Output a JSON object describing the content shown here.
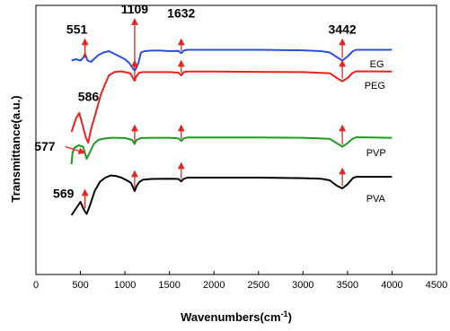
{
  "chart_data": {
    "type": "line",
    "xlabel": "Wavenumbers(cm",
    "xlabel_sup": "-1",
    "xlabel_end": ")",
    "ylabel": "Transmittance(a.u.)",
    "xlim": [
      0,
      4500
    ],
    "xticks": [
      0,
      500,
      1000,
      1500,
      2000,
      2500,
      3000,
      3500,
      4000,
      4500
    ],
    "xtick_labels": [
      "0",
      "500",
      "1000",
      "1500",
      "2000",
      "2500",
      "3000",
      "3500",
      "4000",
      "4500"
    ],
    "ylim": [
      0,
      100
    ],
    "yticks_shown": false,
    "grid": false,
    "colors": {
      "EG": "#2b4fe0",
      "PEG": "#e8221f",
      "PVP": "#1f9a1f",
      "PVA": "#000000",
      "arrow": "#e8221f"
    },
    "series": [
      {
        "name": "EG",
        "points": [
          [
            400,
            79.5
          ],
          [
            450,
            80
          ],
          [
            500,
            79.5
          ],
          [
            530,
            80.5
          ],
          [
            551,
            82
          ],
          [
            580,
            79.5
          ],
          [
            620,
            79
          ],
          [
            650,
            80
          ],
          [
            700,
            81.5
          ],
          [
            760,
            82.5
          ],
          [
            820,
            83
          ],
          [
            880,
            82
          ],
          [
            940,
            81
          ],
          [
            1000,
            80
          ],
          [
            1050,
            78.5
          ],
          [
            1090,
            76.5
          ],
          [
            1109,
            75.8
          ],
          [
            1125,
            76.5
          ],
          [
            1150,
            78.5
          ],
          [
            1180,
            82.5
          ],
          [
            1220,
            83
          ],
          [
            1300,
            83.2
          ],
          [
            1400,
            83.2
          ],
          [
            1500,
            83
          ],
          [
            1600,
            83.1
          ],
          [
            1632,
            82.2
          ],
          [
            1660,
            83.2
          ],
          [
            1700,
            83.5
          ],
          [
            2000,
            83.5
          ],
          [
            2500,
            83.5
          ],
          [
            3000,
            83.3
          ],
          [
            3200,
            83
          ],
          [
            3300,
            82.5
          ],
          [
            3380,
            80.8
          ],
          [
            3442,
            79.5
          ],
          [
            3500,
            81
          ],
          [
            3560,
            83
          ],
          [
            3600,
            83.5
          ],
          [
            3800,
            83.5
          ],
          [
            4000,
            83.5
          ]
        ]
      },
      {
        "name": "PEG",
        "points": [
          [
            400,
            53
          ],
          [
            450,
            58
          ],
          [
            486,
            60
          ],
          [
            520,
            56
          ],
          [
            560,
            51
          ],
          [
            586,
            49
          ],
          [
            620,
            54
          ],
          [
            680,
            61
          ],
          [
            730,
            67
          ],
          [
            780,
            71
          ],
          [
            820,
            74
          ],
          [
            880,
            75.2
          ],
          [
            950,
            75.5
          ],
          [
            1000,
            75.2
          ],
          [
            1060,
            74.7
          ],
          [
            1090,
            73
          ],
          [
            1109,
            72
          ],
          [
            1125,
            73.5
          ],
          [
            1160,
            75
          ],
          [
            1200,
            75.2
          ],
          [
            1300,
            75.2
          ],
          [
            1500,
            75.2
          ],
          [
            1600,
            75
          ],
          [
            1632,
            74
          ],
          [
            1660,
            75.2
          ],
          [
            1700,
            75.4
          ],
          [
            2000,
            75.4
          ],
          [
            2500,
            75.3
          ],
          [
            3000,
            75.2
          ],
          [
            3300,
            74.8
          ],
          [
            3380,
            73
          ],
          [
            3442,
            71.8
          ],
          [
            3500,
            73
          ],
          [
            3560,
            75
          ],
          [
            3600,
            75.5
          ],
          [
            4000,
            75.4
          ]
        ]
      },
      {
        "name": "PVP",
        "points": [
          [
            400,
            41
          ],
          [
            410,
            45
          ],
          [
            430,
            47
          ],
          [
            480,
            48
          ],
          [
            530,
            47.5
          ],
          [
            569,
            43
          ],
          [
            600,
            45
          ],
          [
            650,
            48.5
          ],
          [
            700,
            50
          ],
          [
            760,
            50.5
          ],
          [
            850,
            50.8
          ],
          [
            1000,
            50.7
          ],
          [
            1080,
            50
          ],
          [
            1109,
            48.5
          ],
          [
            1130,
            50
          ],
          [
            1180,
            50.7
          ],
          [
            1300,
            50.8
          ],
          [
            1500,
            50.8
          ],
          [
            1600,
            50.6
          ],
          [
            1632,
            49.6
          ],
          [
            1660,
            50.6
          ],
          [
            1700,
            50.9
          ],
          [
            2000,
            50.9
          ],
          [
            2500,
            50.9
          ],
          [
            3000,
            50.8
          ],
          [
            3300,
            50.4
          ],
          [
            3380,
            48.8
          ],
          [
            3442,
            47.5
          ],
          [
            3500,
            48.8
          ],
          [
            3560,
            50.5
          ],
          [
            3600,
            51
          ],
          [
            4000,
            50.8
          ]
        ]
      },
      {
        "name": "PVA",
        "points": [
          [
            400,
            22
          ],
          [
            450,
            24.5
          ],
          [
            500,
            27
          ],
          [
            540,
            24
          ],
          [
            570,
            22.5
          ],
          [
            610,
            26
          ],
          [
            660,
            31
          ],
          [
            720,
            34.5
          ],
          [
            780,
            36
          ],
          [
            840,
            36.8
          ],
          [
            900,
            36.6
          ],
          [
            960,
            36
          ],
          [
            1020,
            35
          ],
          [
            1070,
            34
          ],
          [
            1109,
            31
          ],
          [
            1130,
            32.8
          ],
          [
            1160,
            34.3
          ],
          [
            1200,
            35.2
          ],
          [
            1300,
            35.5
          ],
          [
            1500,
            35.6
          ],
          [
            1600,
            35.5
          ],
          [
            1632,
            34.6
          ],
          [
            1660,
            35.5
          ],
          [
            1700,
            36
          ],
          [
            2000,
            36
          ],
          [
            2500,
            36
          ],
          [
            3000,
            35.8
          ],
          [
            3200,
            35.6
          ],
          [
            3300,
            35
          ],
          [
            3380,
            33
          ],
          [
            3442,
            32
          ],
          [
            3500,
            33.5
          ],
          [
            3560,
            35.8
          ],
          [
            3600,
            36.3
          ],
          [
            3800,
            36.3
          ],
          [
            4000,
            36.3
          ]
        ]
      }
    ],
    "series_labels": [
      {
        "text": "EG",
        "x": 3750,
        "y": 77
      },
      {
        "text": "PEG",
        "x": 3690,
        "y": 69
      },
      {
        "text": "PVP",
        "x": 3710,
        "y": 44
      },
      {
        "text": "PVA",
        "x": 3710,
        "y": 27
      }
    ],
    "peak_arrows": [
      {
        "x": 551,
        "from": 80.5,
        "to": 86.5
      },
      {
        "x": 1109,
        "from": 76.5,
        "to": 94
      },
      {
        "x": 1632,
        "from": 83,
        "to": 86.5
      },
      {
        "x": 3442,
        "from": 80.5,
        "to": 86.5
      },
      {
        "x": 1109,
        "from": 72.8,
        "to": 78.5
      },
      {
        "x": 1632,
        "from": 75,
        "to": 78.5
      },
      {
        "x": 3442,
        "from": 72.8,
        "to": 78.5
      },
      {
        "x": 1109,
        "from": 49.3,
        "to": 54.5
      },
      {
        "x": 1632,
        "from": 50.4,
        "to": 54.5
      },
      {
        "x": 3442,
        "from": 48.3,
        "to": 54.5
      },
      {
        "x": 551,
        "from": 24.5,
        "to": 30.5
      },
      {
        "x": 1109,
        "from": 32,
        "to": 37.5
      },
      {
        "x": 1632,
        "from": 35.5,
        "to": 40.5
      },
      {
        "x": 3442,
        "from": 33,
        "to": 38.5
      }
    ],
    "peak_annotations": [
      {
        "text": "551",
        "x": 460,
        "y": 89.5
      },
      {
        "text": "1109",
        "x": 1109,
        "y": 97
      },
      {
        "text": "1632",
        "x": 1632,
        "y": 95.5
      },
      {
        "text": "3442",
        "x": 3442,
        "y": 89.5
      },
      {
        "text": "586",
        "x": 590,
        "y": 64.5
      },
      {
        "text": "577",
        "x": 100,
        "y": 46
      },
      {
        "text": "569",
        "x": 310,
        "y": 28.5
      }
    ],
    "annotation_arrows": [
      {
        "from": [
          330,
          47.5
        ],
        "to": [
          520,
          45.5
        ]
      }
    ]
  }
}
